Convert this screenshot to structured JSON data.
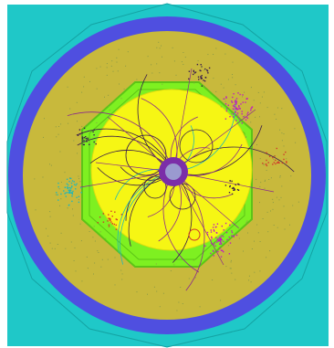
{
  "image": {
    "subject": "particle-collision-event-display",
    "view": "transverse",
    "colors": {
      "background": "#ffffff",
      "outer_muon_system": "#1fc8c8",
      "outer_muon_stroke": "#14a3a3",
      "muon_band": "#4f4fe0",
      "calorimeter": "#c8b93c",
      "calorimeter_hits": "#8a9a46",
      "em_octagon": "#7ef021",
      "em_octagon_edge": "#5cc417",
      "tracker": "#f6f614",
      "tracker_edge": "#dcdc10",
      "beampipe_ring": "#7b2ea8",
      "beampipe_core": "#9a9ad0",
      "tracks_dark": "#3a1c4a",
      "tracks_purple": "#8b2a8b",
      "tracks_cyan": "#23b7b7",
      "tracks_red": "#d03a2a",
      "jet_magenta": "#c01cc0"
    }
  }
}
